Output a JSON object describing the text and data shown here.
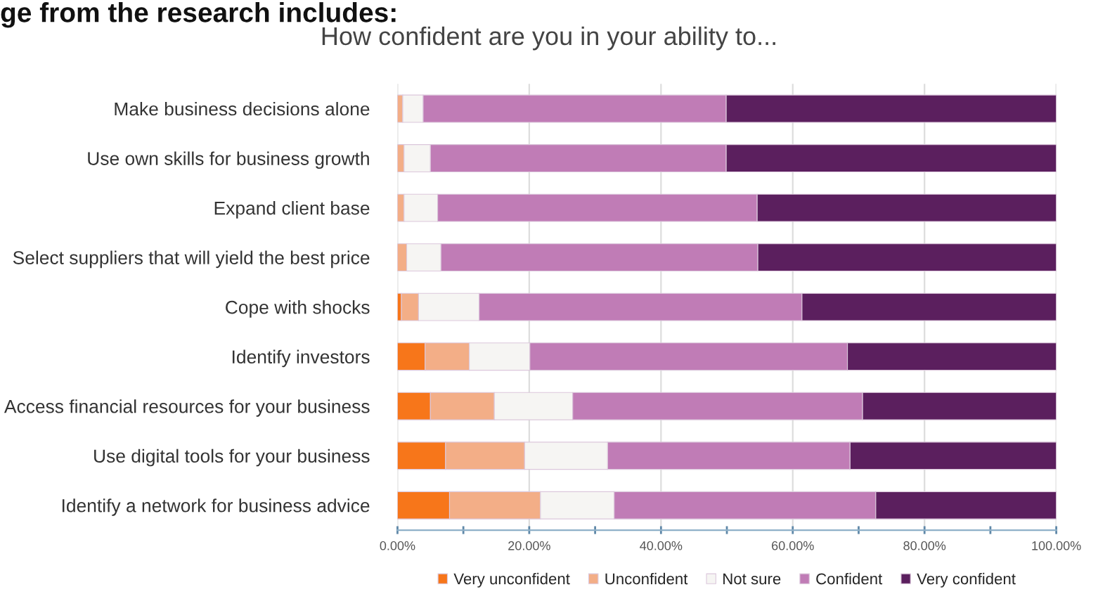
{
  "chart_data": {
    "type": "bar",
    "orientation": "horizontal",
    "stacked": true,
    "title": "How confident are you in your ability to...",
    "annotations": [
      "ge from the research includes:"
    ],
    "categories": [
      "Make business decisions alone",
      "Use own skills for business growth",
      "Expand client base",
      "Select suppliers that will yield the best price",
      "Cope with shocks",
      "Identify investors",
      "Access financial resources for your business",
      "Use digital tools for your business",
      "Identify a network for business advice"
    ],
    "series": [
      {
        "name": "Very unconfident",
        "color": "#f7761a",
        "values": [
          0,
          0,
          0,
          0,
          0.6,
          4.2,
          5.0,
          7.3,
          7.9
        ]
      },
      {
        "name": "Unconfident",
        "color": "#f3ae87",
        "values": [
          0.8,
          1.0,
          1.0,
          1.4,
          2.6,
          6.7,
          9.7,
          12.0,
          13.8
        ]
      },
      {
        "name": "Not sure",
        "color": "#f6f5f3",
        "values": [
          3.1,
          4.0,
          5.1,
          5.2,
          9.2,
          9.2,
          11.9,
          12.6,
          11.2
        ]
      },
      {
        "name": "Confident",
        "color": "#c07cb6",
        "values": [
          46.0,
          44.9,
          48.5,
          48.1,
          49.0,
          48.2,
          44.0,
          36.8,
          39.7
        ]
      },
      {
        "name": "Very confident",
        "color": "#5b1f5e",
        "values": [
          50.1,
          50.1,
          45.4,
          45.3,
          38.6,
          31.7,
          29.4,
          31.3,
          27.4
        ]
      }
    ],
    "xlim": [
      0,
      100
    ],
    "xticks": [
      {
        "value": 0,
        "label": "0.00%"
      },
      {
        "value": 10,
        "label": null
      },
      {
        "value": 20,
        "label": "20.00%"
      },
      {
        "value": 30,
        "label": null
      },
      {
        "value": 40,
        "label": "40.00%"
      },
      {
        "value": 50,
        "label": null
      },
      {
        "value": 60,
        "label": "60.00%"
      },
      {
        "value": 70,
        "label": null
      },
      {
        "value": 80,
        "label": "80.00%"
      },
      {
        "value": 90,
        "label": null
      },
      {
        "value": 100,
        "label": "100.00%"
      }
    ],
    "grid": "x",
    "legend": "bottom"
  }
}
